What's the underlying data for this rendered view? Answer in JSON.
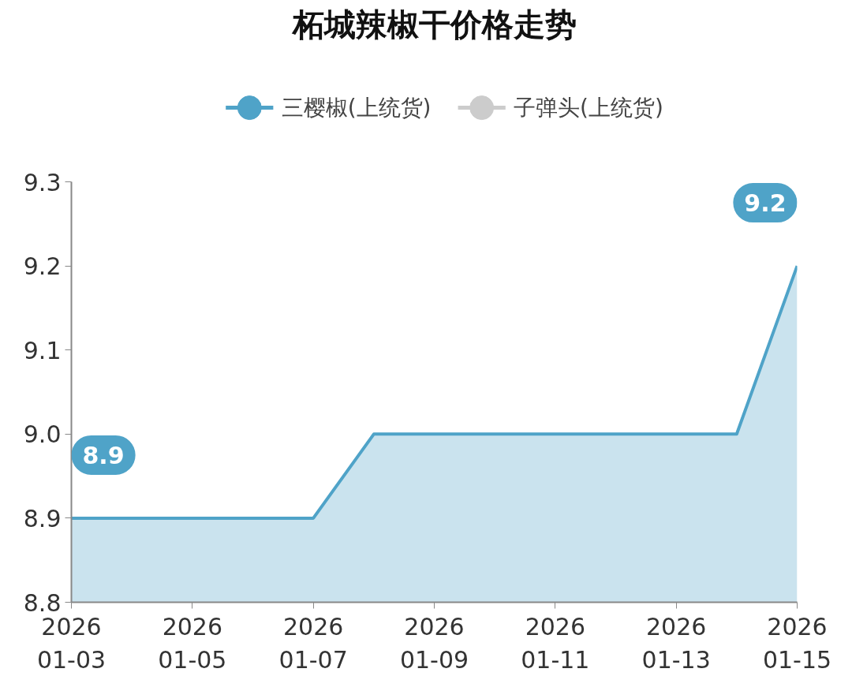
{
  "chart_data": {
    "type": "area",
    "title": "柘城辣椒干价格走势",
    "x": [
      "2026-01-03",
      "2026-01-04",
      "2026-01-05",
      "2026-01-06",
      "2026-01-07",
      "2026-01-08",
      "2026-01-09",
      "2026-01-10",
      "2026-01-11",
      "2026-01-12",
      "2026-01-13",
      "2026-01-14",
      "2026-01-15"
    ],
    "series": [
      {
        "name": "三樱椒(上统货)",
        "color": "#4fa3c8",
        "values": [
          8.9,
          8.9,
          8.9,
          8.9,
          8.9,
          9.0,
          9.0,
          9.0,
          9.0,
          9.0,
          9.0,
          9.0,
          9.2
        ]
      },
      {
        "name": "子弹头(上统货)",
        "color": "#cccccc",
        "values": [
          null,
          null,
          null,
          null,
          null,
          null,
          null,
          null,
          null,
          null,
          null,
          null,
          null
        ]
      }
    ],
    "xlim": [
      "2026-01-03",
      "2026-01-15"
    ],
    "xticks": [
      {
        "value": "2026-01-03",
        "label": "2026\n01-03"
      },
      {
        "value": "2026-01-05",
        "label": "2026\n01-05"
      },
      {
        "value": "2026-01-07",
        "label": "2026\n01-07"
      },
      {
        "value": "2026-01-09",
        "label": "2026\n01-09"
      },
      {
        "value": "2026-01-11",
        "label": "2026\n01-11"
      },
      {
        "value": "2026-01-13",
        "label": "2026\n01-13"
      },
      {
        "value": "2026-01-15",
        "label": "2026\n01-15"
      }
    ],
    "ylim": [
      8.8,
      9.3
    ],
    "yticks": [
      8.8,
      8.9,
      {
        "value": 9.0,
        "label": "9.0"
      },
      9.1,
      9.2,
      9.3
    ],
    "annotations": [
      {
        "text": "8.9",
        "x": "2026-01-03",
        "y": 8.9
      },
      {
        "text": "9.2",
        "x": "2026-01-15",
        "y": 9.2
      }
    ],
    "grid": false,
    "legend": "top",
    "marker": "none",
    "line_style": "solid"
  }
}
